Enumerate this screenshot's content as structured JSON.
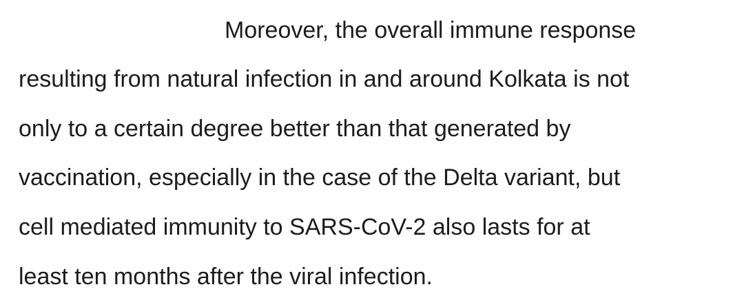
{
  "paragraph": {
    "lines": [
      "Moreover, the overall immune response",
      "resulting from natural infection in and around Kolkata is not",
      "only to a certain degree better than that generated by",
      "vaccination, especially in the case of the Delta variant, but",
      "cell mediated immunity to SARS-CoV-2 also lasts for at",
      "least ten months after the viral infection."
    ]
  },
  "colors": {
    "text": "#1c1c1c",
    "background": "#ffffff"
  }
}
